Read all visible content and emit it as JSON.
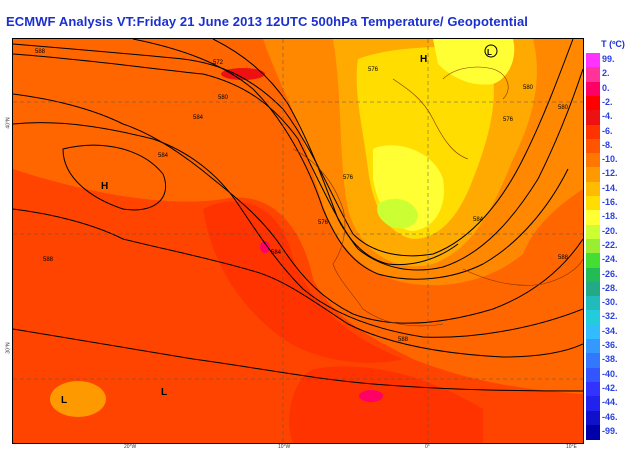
{
  "title": "ECMWF  Analysis VT:Friday 21 June 2013 12UTC 500hPa Temperature/  Geopotential",
  "legend": {
    "title": "T (ºC)",
    "entries": [
      {
        "label": "99.",
        "color": "#ff33ff"
      },
      {
        "label": "2.",
        "color": "#ff3399"
      },
      {
        "label": "0.",
        "color": "#ff0066"
      },
      {
        "label": "-2.",
        "color": "#ff0000"
      },
      {
        "label": "-4.",
        "color": "#ee1111"
      },
      {
        "label": "-6.",
        "color": "#ff3300"
      },
      {
        "label": "-8.",
        "color": "#ff5500"
      },
      {
        "label": "-10.",
        "color": "#ff7700"
      },
      {
        "label": "-12.",
        "color": "#ff9900"
      },
      {
        "label": "-14.",
        "color": "#ffbb00"
      },
      {
        "label": "-16.",
        "color": "#ffdd00"
      },
      {
        "label": "-18.",
        "color": "#ffff33"
      },
      {
        "label": "-20.",
        "color": "#ccff33"
      },
      {
        "label": "-22.",
        "color": "#99ee33"
      },
      {
        "label": "-24.",
        "color": "#44dd33"
      },
      {
        "label": "-26.",
        "color": "#22bb55"
      },
      {
        "label": "-28.",
        "color": "#22aa88"
      },
      {
        "label": "-30.",
        "color": "#22bbbb"
      },
      {
        "label": "-32.",
        "color": "#22ccdd"
      },
      {
        "label": "-34.",
        "color": "#33bbff"
      },
      {
        "label": "-36.",
        "color": "#3399ff"
      },
      {
        "label": "-38.",
        "color": "#3377ff"
      },
      {
        "label": "-40.",
        "color": "#3355ff"
      },
      {
        "label": "-42.",
        "color": "#3333ff"
      },
      {
        "label": "-44.",
        "color": "#2222ee"
      },
      {
        "label": "-46.",
        "color": "#1111cc"
      },
      {
        "label": "-99.",
        "color": "#0000aa"
      }
    ]
  },
  "pressure_centers": [
    {
      "label": "H"
    },
    {
      "label": "H"
    },
    {
      "label": "L"
    },
    {
      "label": "L"
    },
    {
      "label": "L"
    }
  ],
  "contour_labels": [
    "588",
    "584",
    "576",
    "572",
    "580",
    "584",
    "588",
    "576",
    "584",
    "576",
    "576",
    "580",
    "584",
    "588",
    "588",
    "580"
  ],
  "lon_labels": [
    "20°W",
    "10°W",
    "0°",
    "10°E"
  ],
  "lat_labels": [
    "40°N",
    "30°N"
  ]
}
